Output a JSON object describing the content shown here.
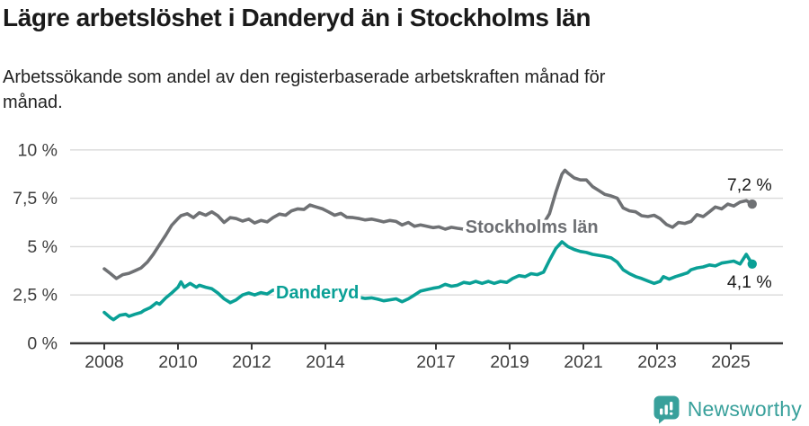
{
  "header": {
    "title": "Lägre arbetslöshet i Danderyd än i Stockholms län",
    "subtitle_line1": "Arbetssökande som andel av den registerbaserade arbetskraften månad för",
    "subtitle_line2": "månad."
  },
  "chart_data": {
    "type": "line",
    "title": "Lägre arbetslöshet i Danderyd än i Stockholms län",
    "subtitle": "Arbetssökande som andel av den registerbaserade arbetskraften månad för månad.",
    "unit": "%",
    "grid": true,
    "x_axis": {
      "min": 2008,
      "max": 2026.4,
      "tick_years": [
        2008,
        2010,
        2012,
        2014,
        2017,
        2019,
        2021,
        2023,
        2025
      ]
    },
    "y_axis": {
      "min": 0,
      "max": 10,
      "ticks": [
        {
          "value": 0,
          "label": "0 %"
        },
        {
          "value": 2.5,
          "label": "2,5 %"
        },
        {
          "value": 5,
          "label": "5 %"
        },
        {
          "value": 7.5,
          "label": "7,5 %"
        },
        {
          "value": 10,
          "label": "10 %"
        }
      ]
    },
    "series": [
      {
        "name": "Stockholms län",
        "color": "#6f7174",
        "label_color": "#6d6f73",
        "end_label": "7,2 %",
        "end_value": 7.2,
        "end_label_position": "above",
        "inline_label": {
          "t": 2017.8,
          "v": 6.05
        },
        "points": [
          [
            2008.0,
            3.85
          ],
          [
            2008.17,
            3.6
          ],
          [
            2008.33,
            3.35
          ],
          [
            2008.5,
            3.55
          ],
          [
            2008.67,
            3.62
          ],
          [
            2008.83,
            3.75
          ],
          [
            2009.0,
            3.9
          ],
          [
            2009.17,
            4.2
          ],
          [
            2009.33,
            4.6
          ],
          [
            2009.5,
            5.1
          ],
          [
            2009.67,
            5.6
          ],
          [
            2009.83,
            6.1
          ],
          [
            2010.0,
            6.45
          ],
          [
            2010.08,
            6.6
          ],
          [
            2010.25,
            6.7
          ],
          [
            2010.42,
            6.5
          ],
          [
            2010.58,
            6.75
          ],
          [
            2010.75,
            6.62
          ],
          [
            2010.92,
            6.8
          ],
          [
            2011.08,
            6.6
          ],
          [
            2011.25,
            6.25
          ],
          [
            2011.42,
            6.5
          ],
          [
            2011.58,
            6.45
          ],
          [
            2011.75,
            6.32
          ],
          [
            2011.92,
            6.42
          ],
          [
            2012.08,
            6.22
          ],
          [
            2012.25,
            6.35
          ],
          [
            2012.42,
            6.28
          ],
          [
            2012.58,
            6.5
          ],
          [
            2012.75,
            6.68
          ],
          [
            2012.92,
            6.62
          ],
          [
            2013.08,
            6.85
          ],
          [
            2013.25,
            6.95
          ],
          [
            2013.42,
            6.92
          ],
          [
            2013.58,
            7.15
          ],
          [
            2013.75,
            7.05
          ],
          [
            2013.92,
            6.95
          ],
          [
            2014.08,
            6.8
          ],
          [
            2014.25,
            6.62
          ],
          [
            2014.42,
            6.72
          ],
          [
            2014.58,
            6.52
          ],
          [
            2014.75,
            6.5
          ],
          [
            2014.92,
            6.45
          ],
          [
            2015.08,
            6.38
          ],
          [
            2015.25,
            6.42
          ],
          [
            2015.42,
            6.35
          ],
          [
            2015.58,
            6.28
          ],
          [
            2015.75,
            6.35
          ],
          [
            2015.92,
            6.3
          ],
          [
            2016.08,
            6.12
          ],
          [
            2016.25,
            6.25
          ],
          [
            2016.42,
            6.05
          ],
          [
            2016.58,
            6.12
          ],
          [
            2016.75,
            6.05
          ],
          [
            2016.92,
            5.98
          ],
          [
            2017.08,
            6.02
          ],
          [
            2017.25,
            5.9
          ],
          [
            2017.42,
            6.0
          ],
          [
            2017.58,
            5.95
          ],
          [
            2017.75,
            5.9
          ],
          [
            2017.92,
            5.95
          ],
          [
            2018.08,
            5.88
          ],
          [
            2018.25,
            5.95
          ],
          [
            2018.42,
            5.85
          ],
          [
            2018.58,
            5.9
          ],
          [
            2018.75,
            5.85
          ],
          [
            2018.92,
            5.92
          ],
          [
            2019.08,
            5.88
          ],
          [
            2019.25,
            5.85
          ],
          [
            2019.42,
            5.92
          ],
          [
            2019.58,
            5.95
          ],
          [
            2019.75,
            6.05
          ],
          [
            2019.92,
            6.2
          ],
          [
            2020.08,
            6.7
          ],
          [
            2020.25,
            7.8
          ],
          [
            2020.42,
            8.75
          ],
          [
            2020.5,
            8.95
          ],
          [
            2020.58,
            8.8
          ],
          [
            2020.75,
            8.55
          ],
          [
            2020.92,
            8.45
          ],
          [
            2021.08,
            8.45
          ],
          [
            2021.25,
            8.1
          ],
          [
            2021.42,
            7.9
          ],
          [
            2021.58,
            7.7
          ],
          [
            2021.75,
            7.62
          ],
          [
            2021.92,
            7.5
          ],
          [
            2022.08,
            7.0
          ],
          [
            2022.25,
            6.85
          ],
          [
            2022.42,
            6.8
          ],
          [
            2022.58,
            6.6
          ],
          [
            2022.75,
            6.55
          ],
          [
            2022.92,
            6.62
          ],
          [
            2023.08,
            6.45
          ],
          [
            2023.25,
            6.15
          ],
          [
            2023.42,
            6.0
          ],
          [
            2023.58,
            6.25
          ],
          [
            2023.75,
            6.2
          ],
          [
            2023.92,
            6.3
          ],
          [
            2024.08,
            6.65
          ],
          [
            2024.25,
            6.55
          ],
          [
            2024.42,
            6.8
          ],
          [
            2024.58,
            7.05
          ],
          [
            2024.75,
            6.95
          ],
          [
            2024.92,
            7.2
          ],
          [
            2025.08,
            7.1
          ],
          [
            2025.25,
            7.3
          ],
          [
            2025.42,
            7.38
          ],
          [
            2025.58,
            7.2
          ]
        ]
      },
      {
        "name": "Danderyd",
        "color": "#0aa096",
        "label_color": "#0aa096",
        "end_label": "4,1 %",
        "end_value": 4.1,
        "end_label_position": "below",
        "inline_label": {
          "t": 2012.66,
          "v": 2.64
        },
        "points": [
          [
            2008.0,
            1.6
          ],
          [
            2008.17,
            1.32
          ],
          [
            2008.25,
            1.22
          ],
          [
            2008.42,
            1.45
          ],
          [
            2008.58,
            1.5
          ],
          [
            2008.67,
            1.4
          ],
          [
            2008.83,
            1.5
          ],
          [
            2009.0,
            1.6
          ],
          [
            2009.08,
            1.7
          ],
          [
            2009.25,
            1.85
          ],
          [
            2009.42,
            2.1
          ],
          [
            2009.5,
            2.02
          ],
          [
            2009.67,
            2.35
          ],
          [
            2009.83,
            2.6
          ],
          [
            2010.0,
            2.9
          ],
          [
            2010.08,
            3.18
          ],
          [
            2010.17,
            2.9
          ],
          [
            2010.33,
            3.1
          ],
          [
            2010.5,
            2.9
          ],
          [
            2010.58,
            3.0
          ],
          [
            2010.75,
            2.9
          ],
          [
            2010.92,
            2.82
          ],
          [
            2011.08,
            2.6
          ],
          [
            2011.25,
            2.3
          ],
          [
            2011.42,
            2.1
          ],
          [
            2011.58,
            2.25
          ],
          [
            2011.75,
            2.5
          ],
          [
            2011.92,
            2.6
          ],
          [
            2012.08,
            2.5
          ],
          [
            2012.25,
            2.62
          ],
          [
            2012.42,
            2.55
          ],
          [
            2012.58,
            2.75
          ],
          [
            2012.75,
            2.68
          ],
          [
            2012.92,
            2.6
          ],
          [
            2013.08,
            2.7
          ],
          [
            2013.25,
            2.62
          ],
          [
            2013.42,
            2.55
          ],
          [
            2013.58,
            2.62
          ],
          [
            2013.75,
            2.45
          ],
          [
            2013.92,
            2.52
          ],
          [
            2014.08,
            2.45
          ],
          [
            2014.25,
            2.38
          ],
          [
            2014.42,
            2.45
          ],
          [
            2014.58,
            2.35
          ],
          [
            2014.75,
            2.3
          ],
          [
            2014.92,
            2.38
          ],
          [
            2015.08,
            2.32
          ],
          [
            2015.25,
            2.35
          ],
          [
            2015.42,
            2.28
          ],
          [
            2015.58,
            2.2
          ],
          [
            2015.75,
            2.25
          ],
          [
            2015.92,
            2.3
          ],
          [
            2016.08,
            2.15
          ],
          [
            2016.25,
            2.3
          ],
          [
            2016.42,
            2.5
          ],
          [
            2016.58,
            2.7
          ],
          [
            2016.75,
            2.78
          ],
          [
            2016.92,
            2.85
          ],
          [
            2017.08,
            2.9
          ],
          [
            2017.25,
            3.05
          ],
          [
            2017.42,
            2.95
          ],
          [
            2017.58,
            3.0
          ],
          [
            2017.75,
            3.15
          ],
          [
            2017.92,
            3.1
          ],
          [
            2018.08,
            3.2
          ],
          [
            2018.25,
            3.1
          ],
          [
            2018.42,
            3.2
          ],
          [
            2018.58,
            3.1
          ],
          [
            2018.75,
            3.2
          ],
          [
            2018.92,
            3.15
          ],
          [
            2019.08,
            3.35
          ],
          [
            2019.25,
            3.5
          ],
          [
            2019.42,
            3.45
          ],
          [
            2019.58,
            3.6
          ],
          [
            2019.75,
            3.55
          ],
          [
            2019.92,
            3.68
          ],
          [
            2020.08,
            4.3
          ],
          [
            2020.25,
            4.9
          ],
          [
            2020.42,
            5.25
          ],
          [
            2020.58,
            5.0
          ],
          [
            2020.75,
            4.85
          ],
          [
            2020.92,
            4.75
          ],
          [
            2021.08,
            4.7
          ],
          [
            2021.25,
            4.6
          ],
          [
            2021.42,
            4.55
          ],
          [
            2021.58,
            4.5
          ],
          [
            2021.75,
            4.42
          ],
          [
            2021.92,
            4.2
          ],
          [
            2022.08,
            3.8
          ],
          [
            2022.25,
            3.6
          ],
          [
            2022.42,
            3.45
          ],
          [
            2022.58,
            3.35
          ],
          [
            2022.75,
            3.22
          ],
          [
            2022.92,
            3.1
          ],
          [
            2023.08,
            3.2
          ],
          [
            2023.17,
            3.45
          ],
          [
            2023.33,
            3.32
          ],
          [
            2023.5,
            3.45
          ],
          [
            2023.67,
            3.55
          ],
          [
            2023.83,
            3.65
          ],
          [
            2023.92,
            3.8
          ],
          [
            2024.08,
            3.9
          ],
          [
            2024.25,
            3.95
          ],
          [
            2024.42,
            4.05
          ],
          [
            2024.58,
            4.0
          ],
          [
            2024.75,
            4.15
          ],
          [
            2024.92,
            4.2
          ],
          [
            2025.08,
            4.25
          ],
          [
            2025.25,
            4.1
          ],
          [
            2025.42,
            4.6
          ],
          [
            2025.58,
            4.1
          ]
        ]
      }
    ]
  },
  "footer": {
    "brand": "Newsworthy",
    "logo_icon": "bar-chart-speech-bubble-icon",
    "brand_color": "#38a09b"
  },
  "colors": {
    "background": "#ffffff",
    "grid": "#d9d9d9",
    "axis": "#3a3a3a",
    "tick_label": "#3d3d3d",
    "title": "#1a1a1a",
    "subtitle": "#222222",
    "end_label": "#1a1a1a"
  }
}
